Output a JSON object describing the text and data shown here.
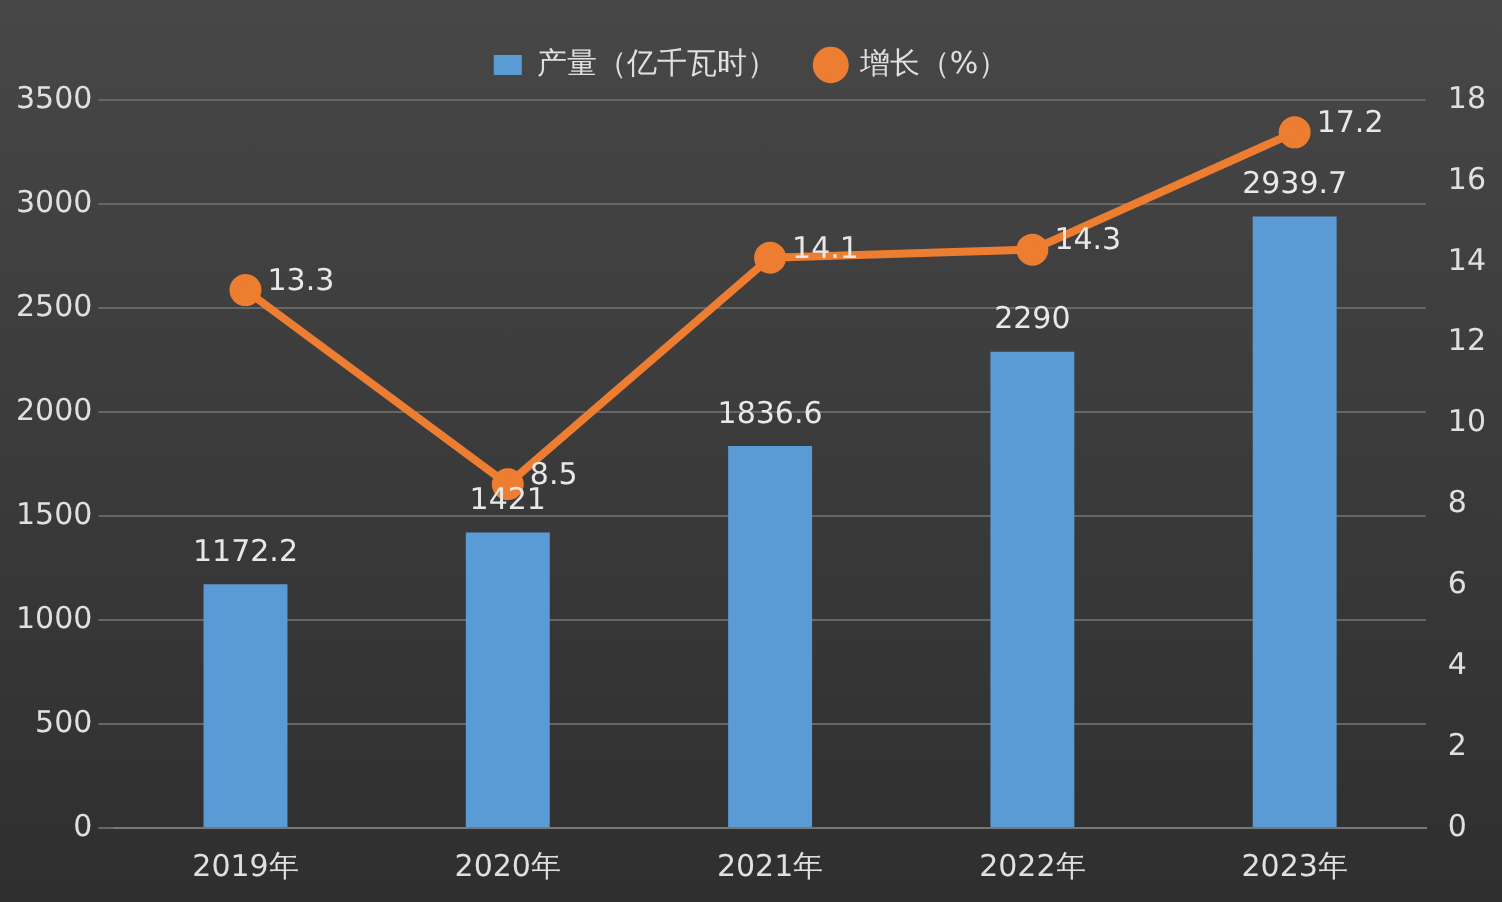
{
  "chart_data": {
    "type": "bar",
    "categories": [
      "2019年",
      "2020年",
      "2021年",
      "2022年",
      "2023年"
    ],
    "series": [
      {
        "name": "产量（亿千瓦时）",
        "color": "#5b9bd5",
        "values": [
          1172.2,
          1421,
          1836.6,
          2290,
          2939.7
        ]
      },
      {
        "name": "增长（%）",
        "type": "line",
        "axis": "y2",
        "color": "#ed7d31",
        "values": [
          13.3,
          8.5,
          14.1,
          14.3,
          17.2
        ]
      }
    ],
    "ylim": [
      0,
      3500
    ],
    "yticks": [
      0,
      500,
      1000,
      1500,
      2000,
      2500,
      3000,
      3500
    ],
    "y2lim": [
      0,
      18
    ],
    "y2ticks": [
      0,
      2,
      4,
      6,
      8,
      10,
      12,
      14,
      16,
      18
    ],
    "grid": "y",
    "legend": "top",
    "data_labels": true,
    "marker": "circle"
  }
}
